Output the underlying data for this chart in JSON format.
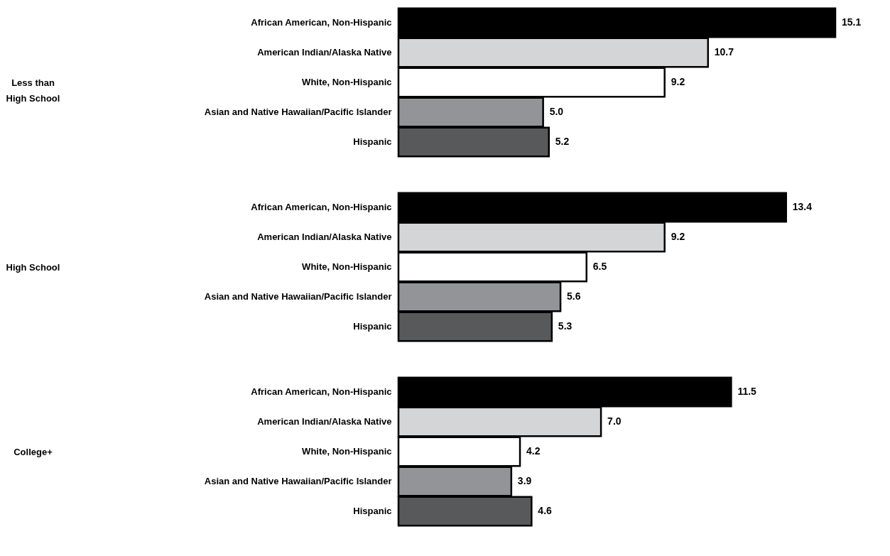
{
  "chart_data": [
    {
      "type": "bar",
      "orientation": "horizontal",
      "ylabel": "Less than High School",
      "categories": [
        "African American, Non-Hispanic",
        "American Indian/Alaska Native",
        "White, Non-Hispanic",
        "Asian and Native Hawaiian/Pacific Islander",
        "Hispanic"
      ],
      "values": [
        15.1,
        10.7,
        9.2,
        5.0,
        5.2
      ],
      "value_labels": [
        "15.1",
        "10.7",
        "9.2",
        "5.0",
        "5.2"
      ],
      "colors": [
        "#000000",
        "#d4d5d7",
        "#ffffff",
        "#939497",
        "#58595b"
      ],
      "tick_labels": "y",
      "legend": false,
      "grid": false
    },
    {
      "type": "bar",
      "orientation": "horizontal",
      "ylabel": "High School",
      "categories": [
        "African American, Non-Hispanic",
        "American Indian/Alaska Native",
        "White, Non-Hispanic",
        "Asian and Native Hawaiian/Pacific Islander",
        "Hispanic"
      ],
      "values": [
        13.4,
        9.2,
        6.5,
        5.6,
        5.3
      ],
      "value_labels": [
        "13.4",
        "9.2",
        "6.5",
        "5.6",
        "5.3"
      ],
      "colors": [
        "#000000",
        "#d4d5d7",
        "#ffffff",
        "#939497",
        "#58595b"
      ],
      "tick_labels": "y",
      "legend": false,
      "grid": false
    },
    {
      "type": "bar",
      "orientation": "horizontal",
      "ylabel": "College+",
      "categories": [
        "African American, Non-Hispanic",
        "American Indian/Alaska Native",
        "White, Non-Hispanic",
        "Asian and Native Hawaiian/Pacific Islander",
        "Hispanic"
      ],
      "values": [
        11.5,
        7.0,
        4.2,
        3.9,
        4.6
      ],
      "value_labels": [
        "11.5",
        "7.0",
        "4.2",
        "3.9",
        "4.6"
      ],
      "colors": [
        "#000000",
        "#d4d5d7",
        "#ffffff",
        "#939497",
        "#58595b"
      ],
      "tick_labels": "y",
      "legend": false,
      "grid": false
    }
  ]
}
